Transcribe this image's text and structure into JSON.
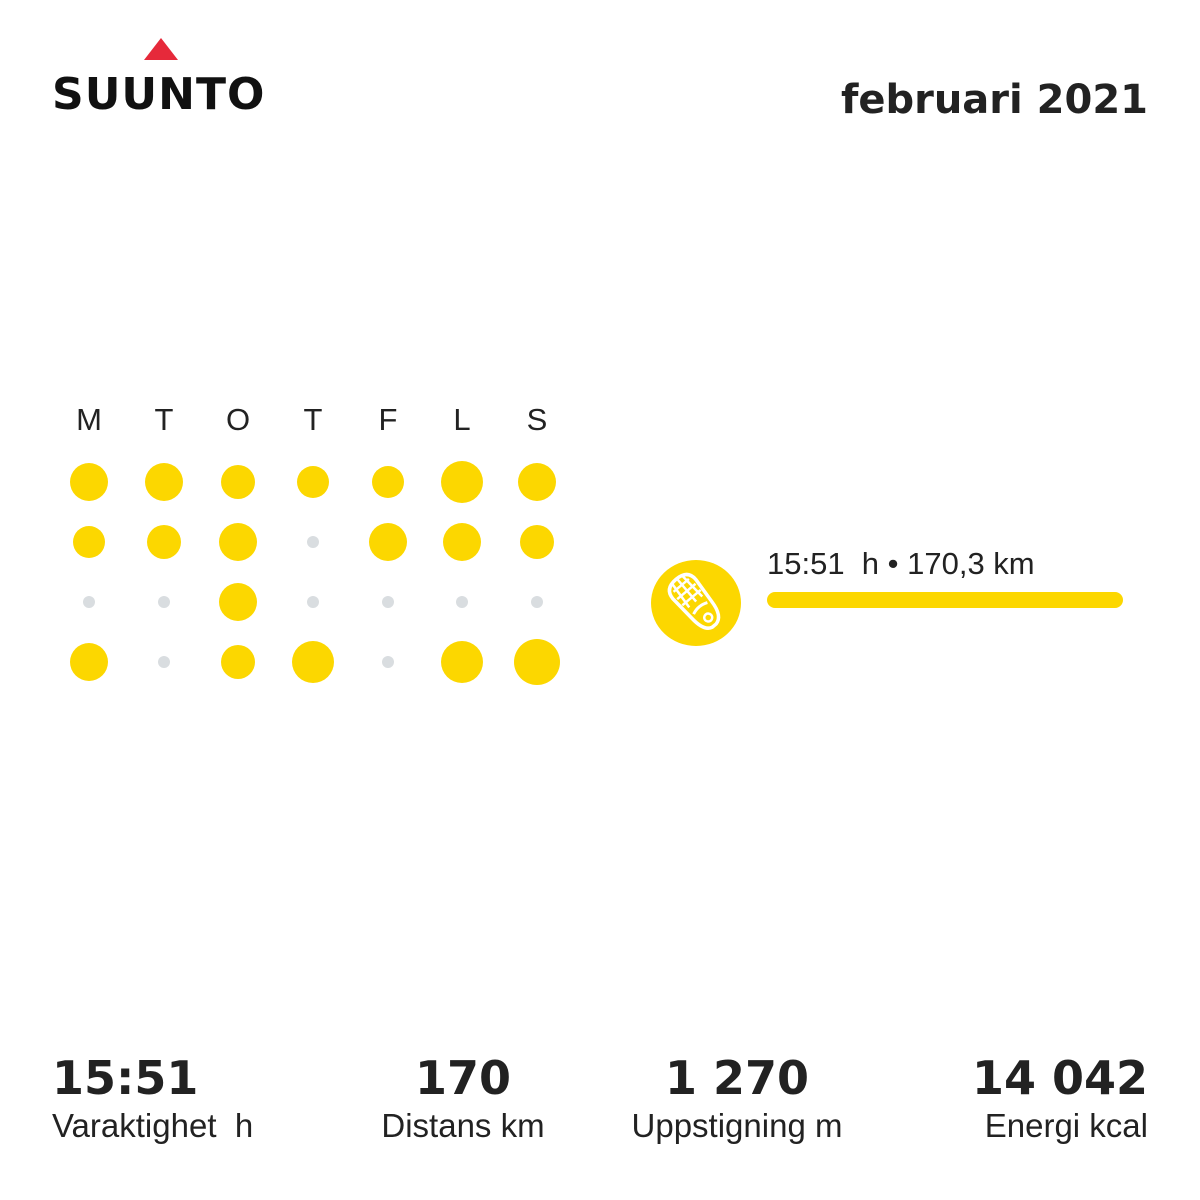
{
  "brand": {
    "name": "SUUNTO",
    "triangle_color": "#e6293a"
  },
  "period": "februari 2021",
  "calendar": {
    "weekdays": [
      "M",
      "T",
      "O",
      "T",
      "F",
      "L",
      "S"
    ],
    "active_color": "#fcd700",
    "inactive_color": "#d9dde0",
    "weeks": [
      [
        3,
        3,
        2,
        1,
        1,
        4,
        3
      ],
      [
        1,
        2,
        3,
        0,
        3,
        3,
        2
      ],
      [
        0,
        0,
        3,
        0,
        0,
        0,
        0
      ],
      [
        3,
        0,
        2,
        4,
        0,
        4,
        5
      ]
    ]
  },
  "activity": {
    "icon": "running-shoe-icon",
    "summary": "15:51  h • 170,3 km",
    "share": 1.0
  },
  "stats": {
    "duration": {
      "value": "15:51",
      "label": "Varaktighet  h"
    },
    "distance": {
      "value": "170",
      "label": "Distans km"
    },
    "ascent": {
      "value": "1 270",
      "label": "Uppstigning m"
    },
    "energy": {
      "value": "14 042",
      "label": "Energi kcal"
    }
  }
}
